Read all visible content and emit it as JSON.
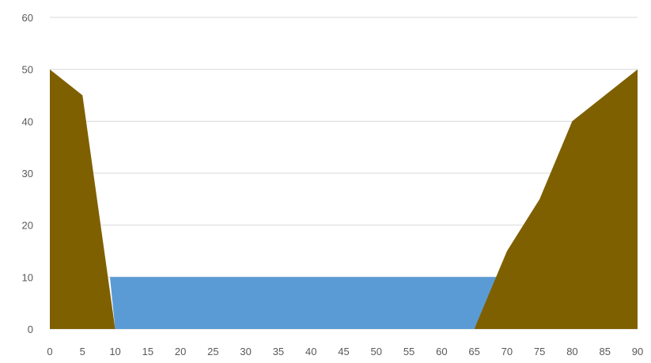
{
  "chart_data": {
    "type": "area",
    "title": "",
    "xlabel": "",
    "ylabel": "",
    "xlim": [
      0,
      90
    ],
    "ylim": [
      0,
      60
    ],
    "x_ticks": [
      "0",
      "5",
      "10",
      "15",
      "20",
      "25",
      "30",
      "35",
      "40",
      "45",
      "50",
      "55",
      "60",
      "65",
      "70",
      "75",
      "80",
      "85",
      "90"
    ],
    "y_ticks": [
      "0",
      "10",
      "20",
      "30",
      "40",
      "50",
      "60"
    ],
    "grid": "horizontal",
    "legend": "none",
    "series": [
      {
        "kind": "water",
        "color": "#5b9bd5",
        "points": [
          [
            9.2,
            10
          ],
          [
            68.6,
            10
          ],
          [
            65,
            0
          ],
          [
            10,
            0
          ]
        ]
      },
      {
        "kind": "bank-left",
        "color": "#7f6000",
        "points": [
          [
            0,
            50
          ],
          [
            5,
            45
          ],
          [
            10,
            0
          ],
          [
            0,
            0
          ]
        ]
      },
      {
        "kind": "bank-right",
        "color": "#7f6000",
        "points": [
          [
            65,
            0
          ],
          [
            70,
            15
          ],
          [
            75,
            25
          ],
          [
            80,
            40
          ],
          [
            85,
            45
          ],
          [
            90,
            50
          ],
          [
            90,
            0
          ]
        ]
      }
    ]
  }
}
